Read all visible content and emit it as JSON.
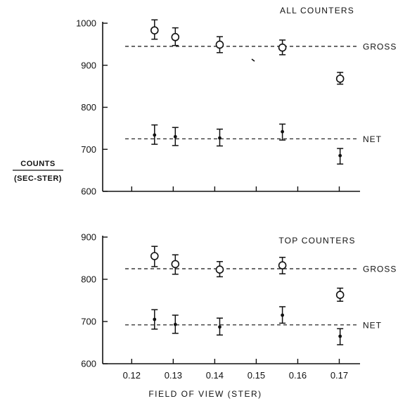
{
  "chart_data": {
    "type": "scatter",
    "ylabel": {
      "numerator": "COUNTS",
      "denominator": "(SEC-STER)"
    },
    "xlabel": "FIELD OF VIEW (STER)",
    "x_ticks": [
      "0.12",
      "0.13",
      "0.14",
      "0.15",
      "0.16",
      "0.17"
    ],
    "xlim": [
      0.113,
      0.175
    ],
    "grid": false,
    "panels": [
      {
        "title": "ALL COUNTERS",
        "ylim": [
          600,
          1000
        ],
        "y_ticks": [
          "600",
          "700",
          "800",
          "900",
          "1000"
        ],
        "series": [
          {
            "name": "GROSS",
            "marker": "open-circle",
            "reference_level": 945,
            "points": [
              {
                "x": 0.1255,
                "y": 983,
                "err_low": 962,
                "err_high": 1008
              },
              {
                "x": 0.1305,
                "y": 967,
                "err_low": 947,
                "err_high": 989
              },
              {
                "x": 0.1412,
                "y": 949,
                "err_low": 930,
                "err_high": 968
              },
              {
                "x": 0.1563,
                "y": 942,
                "err_low": 925,
                "err_high": 960
              },
              {
                "x": 0.1702,
                "y": 868,
                "err_low": 855,
                "err_high": 883
              }
            ]
          },
          {
            "name": "NET",
            "marker": "filled-dot",
            "reference_level": 725,
            "points": [
              {
                "x": 0.1255,
                "y": 734,
                "err_low": 712,
                "err_high": 758
              },
              {
                "x": 0.1305,
                "y": 730,
                "err_low": 709,
                "err_high": 752
              },
              {
                "x": 0.1412,
                "y": 727,
                "err_low": 708,
                "err_high": 748
              },
              {
                "x": 0.1563,
                "y": 742,
                "err_low": 722,
                "err_high": 760
              },
              {
                "x": 0.1702,
                "y": 685,
                "err_low": 665,
                "err_high": 702
              }
            ]
          }
        ]
      },
      {
        "title": "TOP COUNTERS",
        "ylim": [
          600,
          900
        ],
        "y_ticks": [
          "600",
          "700",
          "800",
          "900"
        ],
        "series": [
          {
            "name": "GROSS",
            "marker": "open-circle",
            "reference_level": 825,
            "points": [
              {
                "x": 0.1255,
                "y": 855,
                "err_low": 830,
                "err_high": 878
              },
              {
                "x": 0.1305,
                "y": 836,
                "err_low": 812,
                "err_high": 858
              },
              {
                "x": 0.1412,
                "y": 823,
                "err_low": 806,
                "err_high": 842
              },
              {
                "x": 0.1563,
                "y": 833,
                "err_low": 813,
                "err_high": 852
              },
              {
                "x": 0.1702,
                "y": 763,
                "err_low": 748,
                "err_high": 779
              }
            ]
          },
          {
            "name": "NET",
            "marker": "filled-dot",
            "reference_level": 692,
            "points": [
              {
                "x": 0.1255,
                "y": 705,
                "err_low": 682,
                "err_high": 728
              },
              {
                "x": 0.1305,
                "y": 693,
                "err_low": 672,
                "err_high": 715
              },
              {
                "x": 0.1412,
                "y": 687,
                "err_low": 668,
                "err_high": 708
              },
              {
                "x": 0.1563,
                "y": 715,
                "err_low": 696,
                "err_high": 735
              },
              {
                "x": 0.1702,
                "y": 665,
                "err_low": 645,
                "err_high": 683
              }
            ]
          }
        ]
      }
    ]
  }
}
